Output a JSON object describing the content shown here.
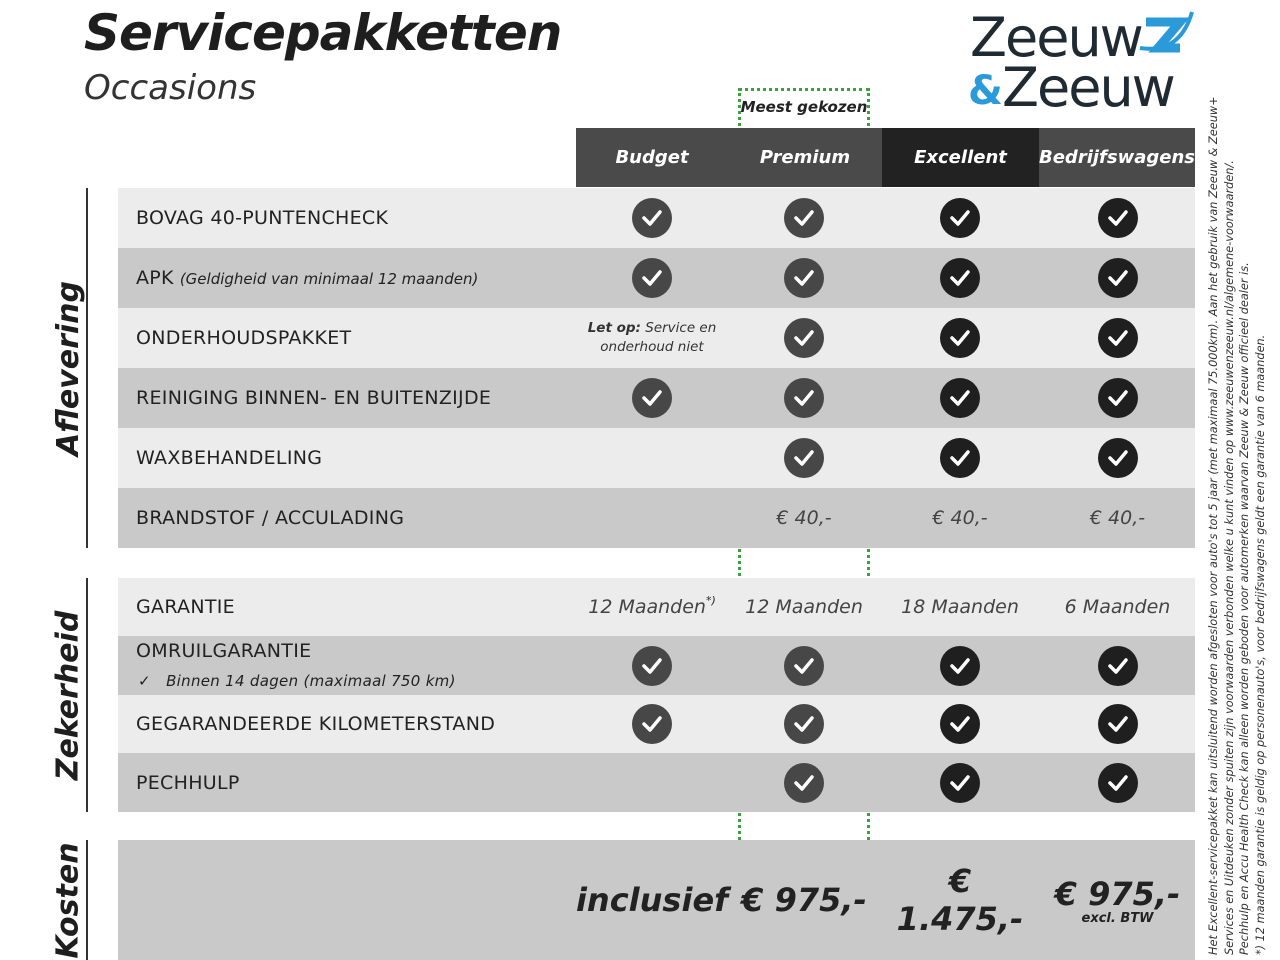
{
  "header": {
    "title": "Servicepakketten",
    "subtitle": "Occasions",
    "logo_text": "Zeeuw & Zeeuw",
    "badge": "Meest gekozen"
  },
  "colors": {
    "logo_dark": "#1f2a33",
    "logo_blue": "#2a9ad8",
    "badge_border": "#3aa040",
    "header_dark": "#4a4a4a",
    "header_black": "#222222"
  },
  "columns": [
    "Budget",
    "Premium",
    "Excellent",
    "Bedrijfswagens"
  ],
  "sections": [
    {
      "name": "Aflevering",
      "rows": [
        {
          "label": "BOVAG 40-PUNTENCHECK",
          "note": "",
          "cells": [
            "check",
            "check",
            "check",
            "check"
          ]
        },
        {
          "label": "APK",
          "note": "(Geldigheid van minimaal 12 maanden)",
          "cells": [
            "check",
            "check",
            "check",
            "check"
          ]
        },
        {
          "label": "ONDERHOUDSPAKKET",
          "note": "",
          "cells": [
            "note",
            "check",
            "check",
            "check"
          ]
        },
        {
          "label": "REINIGING BINNEN- EN BUITENZIJDE",
          "note": "",
          "cells": [
            "check",
            "check",
            "check",
            "check"
          ]
        },
        {
          "label": "WAXBEHANDELING",
          "note": "",
          "cells": [
            "",
            "check",
            "check",
            "check"
          ]
        },
        {
          "label": "BRANDSTOF / ACCULADING",
          "note": "",
          "cells": [
            "",
            "€ 40,-",
            "€ 40,-",
            "€ 40,-"
          ]
        }
      ]
    },
    {
      "name": "Zekerheid",
      "rows": [
        {
          "label": "GARANTIE",
          "note": "",
          "cells": [
            "12 Maanden",
            "12 Maanden",
            "18 Maanden",
            "6 Maanden"
          ]
        },
        {
          "label": "OMRUILGARANTIE",
          "note": "Binnen 14 dagen (maximaal 750 km)",
          "cells": [
            "check",
            "check",
            "check",
            "check"
          ]
        },
        {
          "label": "GEGARANDEERDE KILOMETERSTAND",
          "note": "",
          "cells": [
            "check",
            "check",
            "check",
            "check"
          ]
        },
        {
          "label": "PECHHULP",
          "note": "",
          "cells": [
            "",
            "check",
            "check",
            "check"
          ]
        }
      ]
    },
    {
      "name": "Kosten",
      "prices": [
        "inclusief",
        "€ 975,-",
        "€ 1.475,-",
        "€ 975,-"
      ],
      "price_note": "excl. BTW"
    }
  ],
  "onderhoud_note": {
    "bold": "Let op:",
    "text": "Service en onderhoud niet"
  },
  "garantie_mark": "*)",
  "footnotes": [
    "Het Excellent-servicepakket kan uitsluitend worden afgesloten voor auto's tot 5 jaar (met maximaal 75.000km). Aan het gebruik van Zeeuw & Zeeuw+",
    "Services en Uitdeuken zonder spuiten zijn voorwaarden verbonden welke u kunt vinden op www.zeeuwenzeeuw.nl/algemene-voorwaarden/.",
    "Pechhulp en Accu Health Check kan alleen worden geboden voor automerken waarvan Zeeuw & Zeeuw officieel dealer is.",
    "*) 12 maanden garantie is geldig op personenauto's, voor bedrijfswagens geldt een garantie van 6 maanden."
  ]
}
